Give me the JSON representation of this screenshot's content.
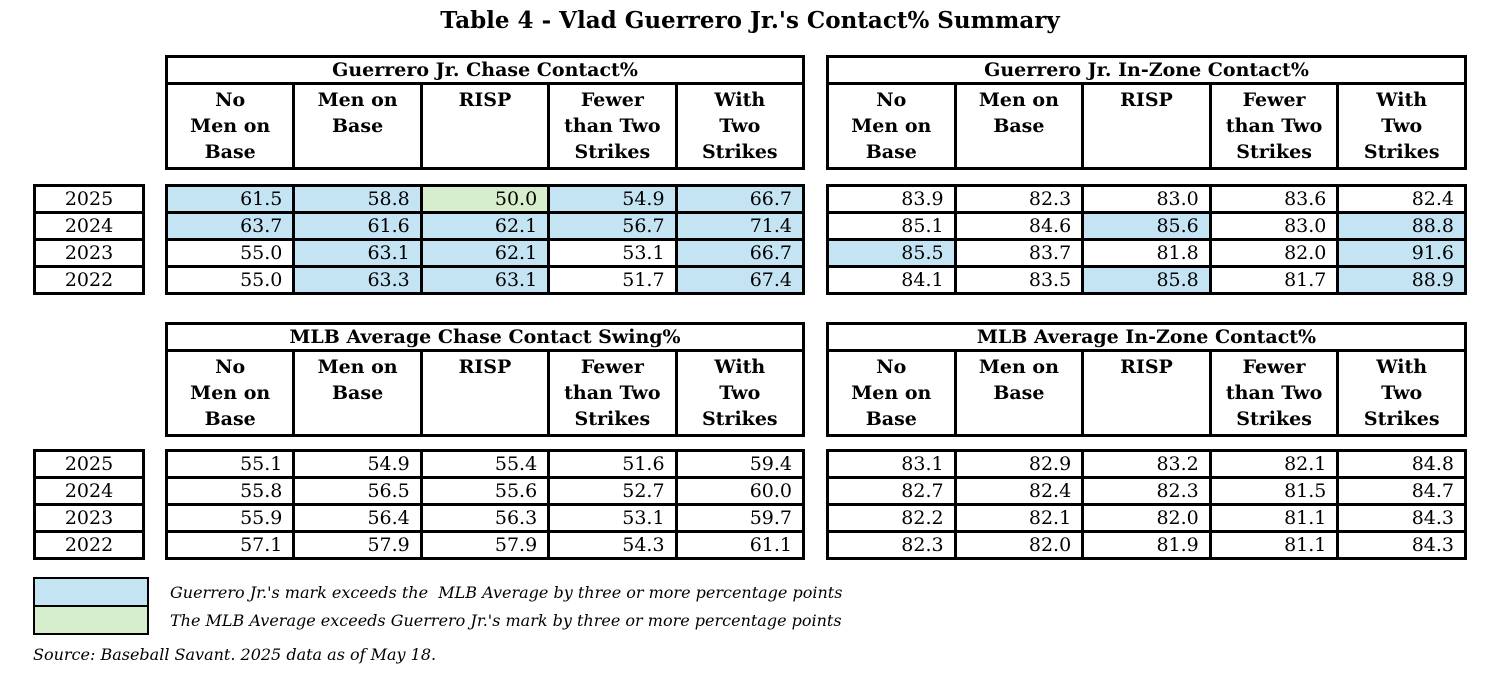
{
  "title": "Table 4 - Vlad Guerrero Jr.'s Contact% Summary",
  "columns": [
    "No\nMen on\nBase",
    "Men on\nBase",
    "RISP",
    "Fewer\nthan Two\nStrikes",
    "With\nTwo\nStrikes"
  ],
  "years": [
    "2025",
    "2024",
    "2023",
    "2022"
  ],
  "colors": {
    "highlight_blue": "#C4E4F4",
    "highlight_green": "#D7EECC"
  },
  "tables": {
    "guerrero_chase": {
      "title": "Guerrero Jr. Chase Contact%",
      "rows": [
        {
          "year": "2025",
          "values": [
            "61.5",
            "58.8",
            "50.0",
            "54.9",
            "66.7"
          ],
          "hl": [
            "blue",
            "blue",
            "green",
            "blue",
            "blue"
          ]
        },
        {
          "year": "2024",
          "values": [
            "63.7",
            "61.6",
            "62.1",
            "56.7",
            "71.4"
          ],
          "hl": [
            "blue",
            "blue",
            "blue",
            "blue",
            "blue"
          ]
        },
        {
          "year": "2023",
          "values": [
            "55.0",
            "63.1",
            "62.1",
            "53.1",
            "66.7"
          ],
          "hl": [
            "",
            "blue",
            "blue",
            "",
            "blue"
          ]
        },
        {
          "year": "2022",
          "values": [
            "55.0",
            "63.3",
            "63.1",
            "51.7",
            "67.4"
          ],
          "hl": [
            "",
            "blue",
            "blue",
            "",
            "blue"
          ]
        }
      ]
    },
    "guerrero_inzone": {
      "title": "Guerrero Jr. In-Zone Contact%",
      "rows": [
        {
          "year": "2025",
          "values": [
            "83.9",
            "82.3",
            "83.0",
            "83.6",
            "82.4"
          ],
          "hl": [
            "",
            "",
            "",
            "",
            ""
          ]
        },
        {
          "year": "2024",
          "values": [
            "85.1",
            "84.6",
            "85.6",
            "83.0",
            "88.8"
          ],
          "hl": [
            "",
            "",
            "blue",
            "",
            "blue"
          ]
        },
        {
          "year": "2023",
          "values": [
            "85.5",
            "83.7",
            "81.8",
            "82.0",
            "91.6"
          ],
          "hl": [
            "blue",
            "",
            "",
            "",
            "blue"
          ]
        },
        {
          "year": "2022",
          "values": [
            "84.1",
            "83.5",
            "85.8",
            "81.7",
            "88.9"
          ],
          "hl": [
            "",
            "",
            "blue",
            "",
            "blue"
          ]
        }
      ]
    },
    "mlb_chase": {
      "title": "MLB Average Chase Contact Swing%",
      "rows": [
        {
          "year": "2025",
          "values": [
            "55.1",
            "54.9",
            "55.4",
            "51.6",
            "59.4"
          ],
          "hl": [
            "",
            "",
            "",
            "",
            ""
          ]
        },
        {
          "year": "2024",
          "values": [
            "55.8",
            "56.5",
            "55.6",
            "52.7",
            "60.0"
          ],
          "hl": [
            "",
            "",
            "",
            "",
            ""
          ]
        },
        {
          "year": "2023",
          "values": [
            "55.9",
            "56.4",
            "56.3",
            "53.1",
            "59.7"
          ],
          "hl": [
            "",
            "",
            "",
            "",
            ""
          ]
        },
        {
          "year": "2022",
          "values": [
            "57.1",
            "57.9",
            "57.9",
            "54.3",
            "61.1"
          ],
          "hl": [
            "",
            "",
            "",
            "",
            ""
          ]
        }
      ]
    },
    "mlb_inzone": {
      "title": "MLB Average In-Zone Contact%",
      "rows": [
        {
          "year": "2025",
          "values": [
            "83.1",
            "82.9",
            "83.2",
            "82.1",
            "84.8"
          ],
          "hl": [
            "",
            "",
            "",
            "",
            ""
          ]
        },
        {
          "year": "2024",
          "values": [
            "82.7",
            "82.4",
            "82.3",
            "81.5",
            "84.7"
          ],
          "hl": [
            "",
            "",
            "",
            "",
            ""
          ]
        },
        {
          "year": "2023",
          "values": [
            "82.2",
            "82.1",
            "82.0",
            "81.1",
            "84.3"
          ],
          "hl": [
            "",
            "",
            "",
            "",
            ""
          ]
        },
        {
          "year": "2022",
          "values": [
            "82.3",
            "82.0",
            "81.9",
            "81.1",
            "84.3"
          ],
          "hl": [
            "",
            "",
            "",
            "",
            ""
          ]
        }
      ]
    }
  },
  "legend": [
    {
      "swatch": "blue",
      "text": "Guerrero Jr.'s mark exceeds the  MLB Average by three or more percentage points"
    },
    {
      "swatch": "green",
      "text": "The MLB Average exceeds Guerrero Jr.'s mark by three or more percentage points"
    }
  ],
  "source": "Source: Baseball Savant. 2025 data as of May 18.",
  "chart_data": [
    {
      "type": "table",
      "title": "Guerrero Jr. Chase Contact%",
      "columns": [
        "No Men on Base",
        "Men on Base",
        "RISP",
        "Fewer than Two Strikes",
        "With Two Strikes"
      ],
      "row_labels": [
        "2025",
        "2024",
        "2023",
        "2022"
      ],
      "values": [
        [
          61.5,
          58.8,
          50.0,
          54.9,
          66.7
        ],
        [
          63.7,
          61.6,
          62.1,
          56.7,
          71.4
        ],
        [
          55.0,
          63.1,
          62.1,
          53.1,
          66.7
        ],
        [
          55.0,
          63.3,
          63.1,
          51.7,
          67.4
        ]
      ]
    },
    {
      "type": "table",
      "title": "Guerrero Jr. In-Zone Contact%",
      "columns": [
        "No Men on Base",
        "Men on Base",
        "RISP",
        "Fewer than Two Strikes",
        "With Two Strikes"
      ],
      "row_labels": [
        "2025",
        "2024",
        "2023",
        "2022"
      ],
      "values": [
        [
          83.9,
          82.3,
          83.0,
          83.6,
          82.4
        ],
        [
          85.1,
          84.6,
          85.6,
          83.0,
          88.8
        ],
        [
          85.5,
          83.7,
          81.8,
          82.0,
          91.6
        ],
        [
          84.1,
          83.5,
          85.8,
          81.7,
          88.9
        ]
      ]
    },
    {
      "type": "table",
      "title": "MLB Average Chase Contact Swing%",
      "columns": [
        "No Men on Base",
        "Men on Base",
        "RISP",
        "Fewer than Two Strikes",
        "With Two Strikes"
      ],
      "row_labels": [
        "2025",
        "2024",
        "2023",
        "2022"
      ],
      "values": [
        [
          55.1,
          54.9,
          55.4,
          51.6,
          59.4
        ],
        [
          55.8,
          56.5,
          55.6,
          52.7,
          60.0
        ],
        [
          55.9,
          56.4,
          56.3,
          53.1,
          59.7
        ],
        [
          57.1,
          57.9,
          57.9,
          54.3,
          61.1
        ]
      ]
    },
    {
      "type": "table",
      "title": "MLB Average In-Zone Contact%",
      "columns": [
        "No Men on Base",
        "Men on Base",
        "RISP",
        "Fewer than Two Strikes",
        "With Two Strikes"
      ],
      "row_labels": [
        "2025",
        "2024",
        "2023",
        "2022"
      ],
      "values": [
        [
          83.1,
          82.9,
          83.2,
          82.1,
          84.8
        ],
        [
          82.7,
          82.4,
          82.3,
          81.5,
          84.7
        ],
        [
          82.2,
          82.1,
          82.0,
          81.1,
          84.3
        ],
        [
          82.3,
          82.0,
          81.9,
          81.1,
          84.3
        ]
      ]
    }
  ]
}
